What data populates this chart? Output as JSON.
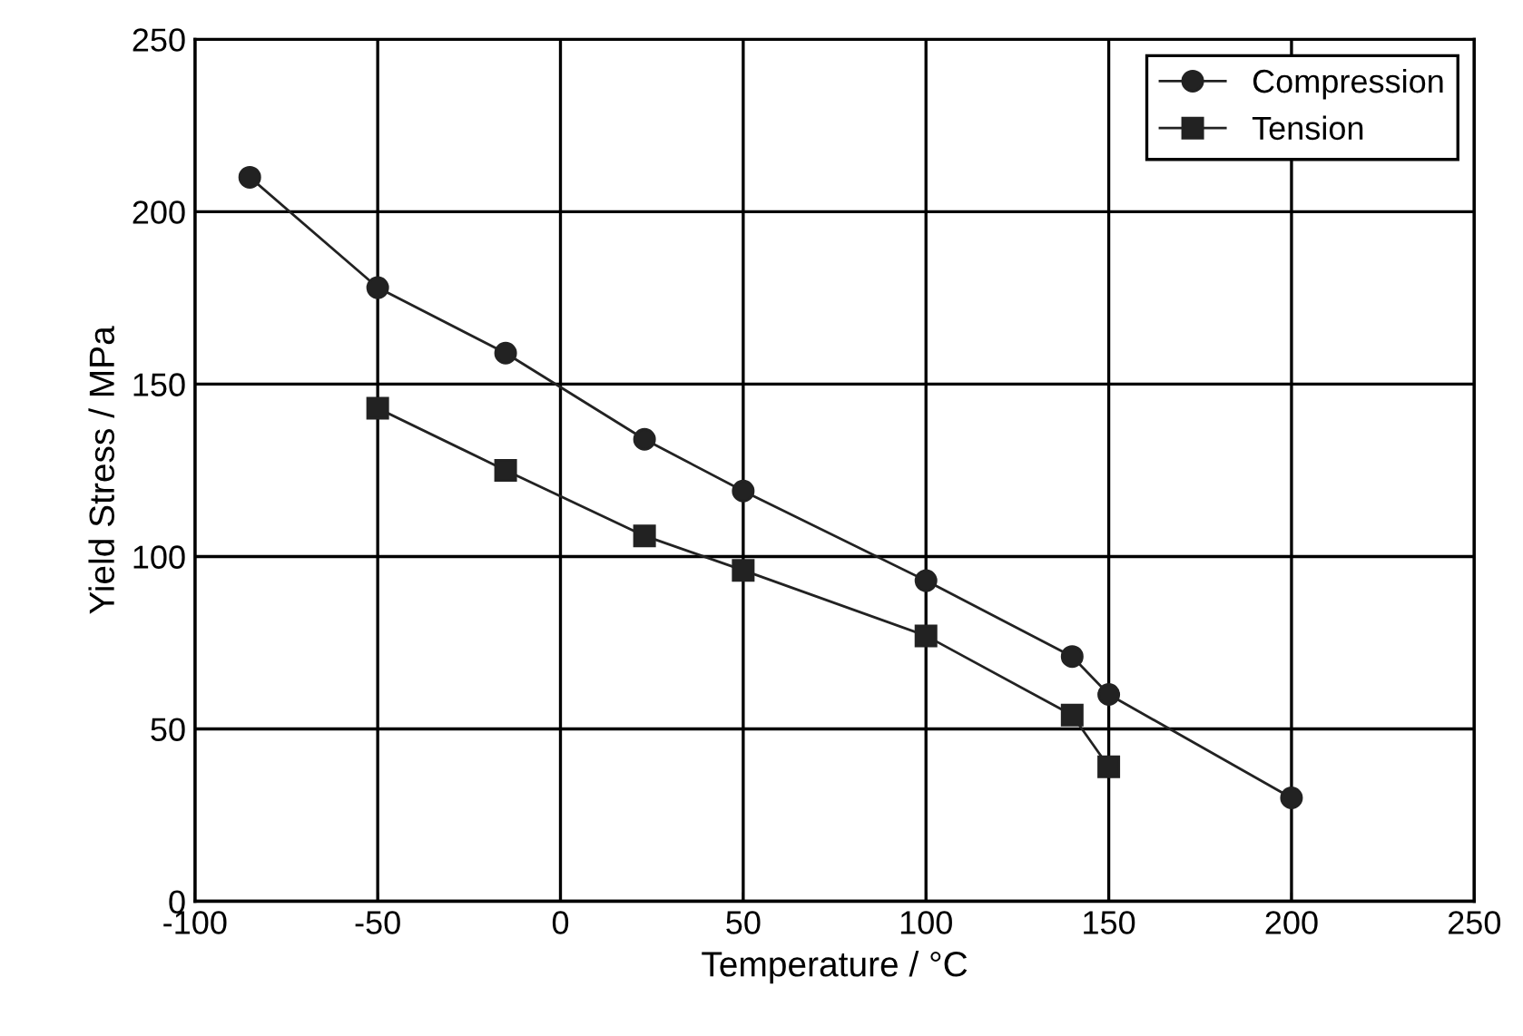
{
  "chart_data": {
    "type": "line",
    "xlabel": "Temperature / °C",
    "ylabel": "Yield Stress / MPa",
    "xlim": [
      -100,
      250
    ],
    "xticks": [
      -100,
      -50,
      0,
      50,
      100,
      150,
      200,
      250
    ],
    "ylim": [
      0,
      250
    ],
    "yticks": [
      0,
      50,
      100,
      150,
      200,
      250
    ],
    "grid": true,
    "legend": "top right",
    "line_style": "solid",
    "series": [
      {
        "name": "Compression",
        "color": "#222222",
        "marker": "circle",
        "x": [
          -85,
          -50,
          -15,
          23,
          50,
          100,
          140,
          150,
          200
        ],
        "values": [
          210,
          178,
          159,
          134,
          119,
          93,
          71,
          60,
          30
        ]
      },
      {
        "name": "Tension",
        "color": "#222222",
        "marker": "square",
        "x": [
          -50,
          -15,
          23,
          50,
          100,
          140,
          150
        ],
        "values": [
          143,
          125,
          106,
          96,
          77,
          54,
          39
        ]
      }
    ]
  }
}
